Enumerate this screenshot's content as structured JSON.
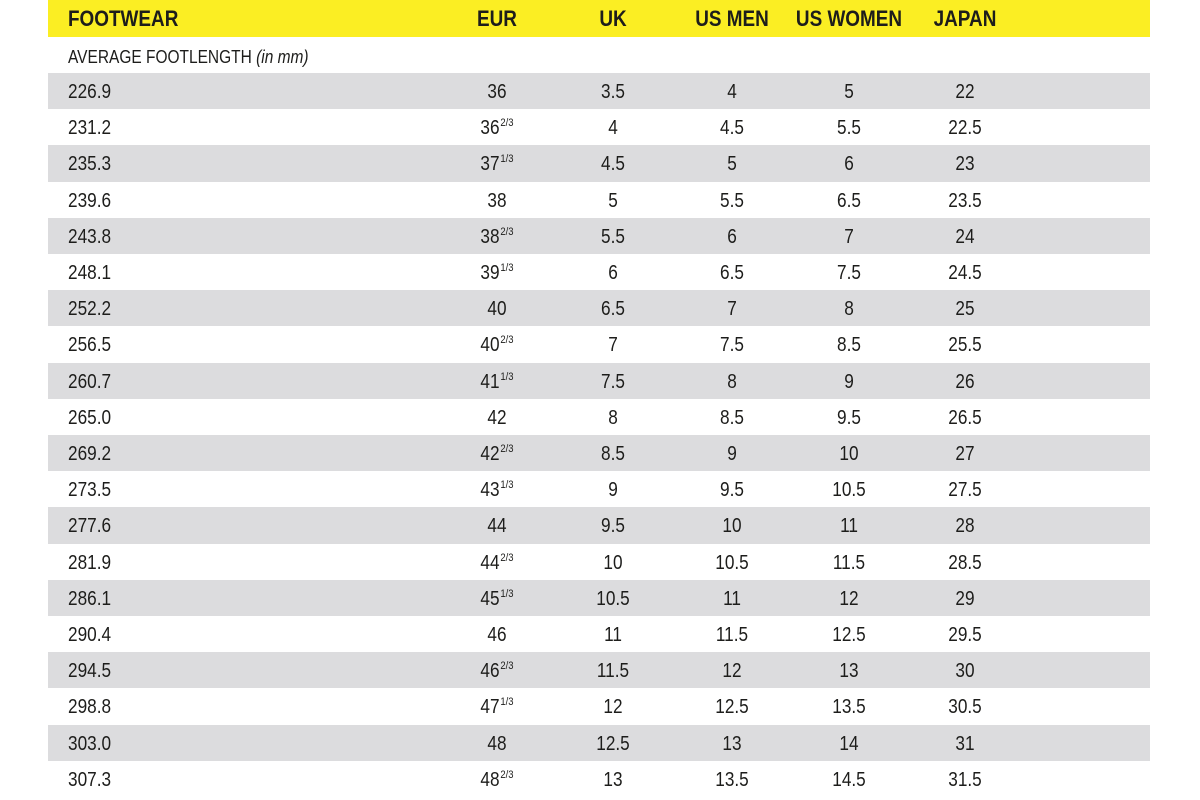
{
  "header": {
    "columns": [
      "FOOTWEAR",
      "EUR",
      "UK",
      "US MEN",
      "US WOMEN",
      "JAPAN"
    ]
  },
  "subtitle": {
    "text": "AVERAGE FOOTLENGTH",
    "unit": "(in mm)"
  },
  "table": {
    "rows": [
      [
        "226.9",
        "36",
        "3.5",
        "4",
        "5",
        "22"
      ],
      [
        "231.2",
        {
          "whole": "36",
          "fraction": "2/3"
        },
        "4",
        "4.5",
        "5.5",
        "22.5"
      ],
      [
        "235.3",
        {
          "whole": "37",
          "fraction": "1/3"
        },
        "4.5",
        "5",
        "6",
        "23"
      ],
      [
        "239.6",
        "38",
        "5",
        "5.5",
        "6.5",
        "23.5"
      ],
      [
        "243.8",
        {
          "whole": "38",
          "fraction": "2/3"
        },
        "5.5",
        "6",
        "7",
        "24"
      ],
      [
        "248.1",
        {
          "whole": "39",
          "fraction": "1/3"
        },
        "6",
        "6.5",
        "7.5",
        "24.5"
      ],
      [
        "252.2",
        "40",
        "6.5",
        "7",
        "8",
        "25"
      ],
      [
        "256.5",
        {
          "whole": "40",
          "fraction": "2/3"
        },
        "7",
        "7.5",
        "8.5",
        "25.5"
      ],
      [
        "260.7",
        {
          "whole": "41",
          "fraction": "1/3"
        },
        "7.5",
        "8",
        "9",
        "26"
      ],
      [
        "265.0",
        "42",
        "8",
        "8.5",
        "9.5",
        "26.5"
      ],
      [
        "269.2",
        {
          "whole": "42",
          "fraction": "2/3"
        },
        "8.5",
        "9",
        "10",
        "27"
      ],
      [
        "273.5",
        {
          "whole": "43",
          "fraction": "1/3"
        },
        "9",
        "9.5",
        "10.5",
        "27.5"
      ],
      [
        "277.6",
        "44",
        "9.5",
        "10",
        "11",
        "28"
      ],
      [
        "281.9",
        {
          "whole": "44",
          "fraction": "2/3"
        },
        "10",
        "10.5",
        "11.5",
        "28.5"
      ],
      [
        "286.1",
        {
          "whole": "45",
          "fraction": "1/3"
        },
        "10.5",
        "11",
        "12",
        "29"
      ],
      [
        "290.4",
        "46",
        "11",
        "11.5",
        "12.5",
        "29.5"
      ],
      [
        "294.5",
        {
          "whole": "46",
          "fraction": "2/3"
        },
        "11.5",
        "12",
        "13",
        "30"
      ],
      [
        "298.8",
        {
          "whole": "47",
          "fraction": "1/3"
        },
        "12",
        "12.5",
        "13.5",
        "30.5"
      ],
      [
        "303.0",
        "48",
        "12.5",
        "13",
        "14",
        "31"
      ],
      [
        "307.3",
        {
          "whole": "48",
          "fraction": "2/3"
        },
        "13",
        "13.5",
        "14.5",
        "31.5"
      ]
    ]
  }
}
